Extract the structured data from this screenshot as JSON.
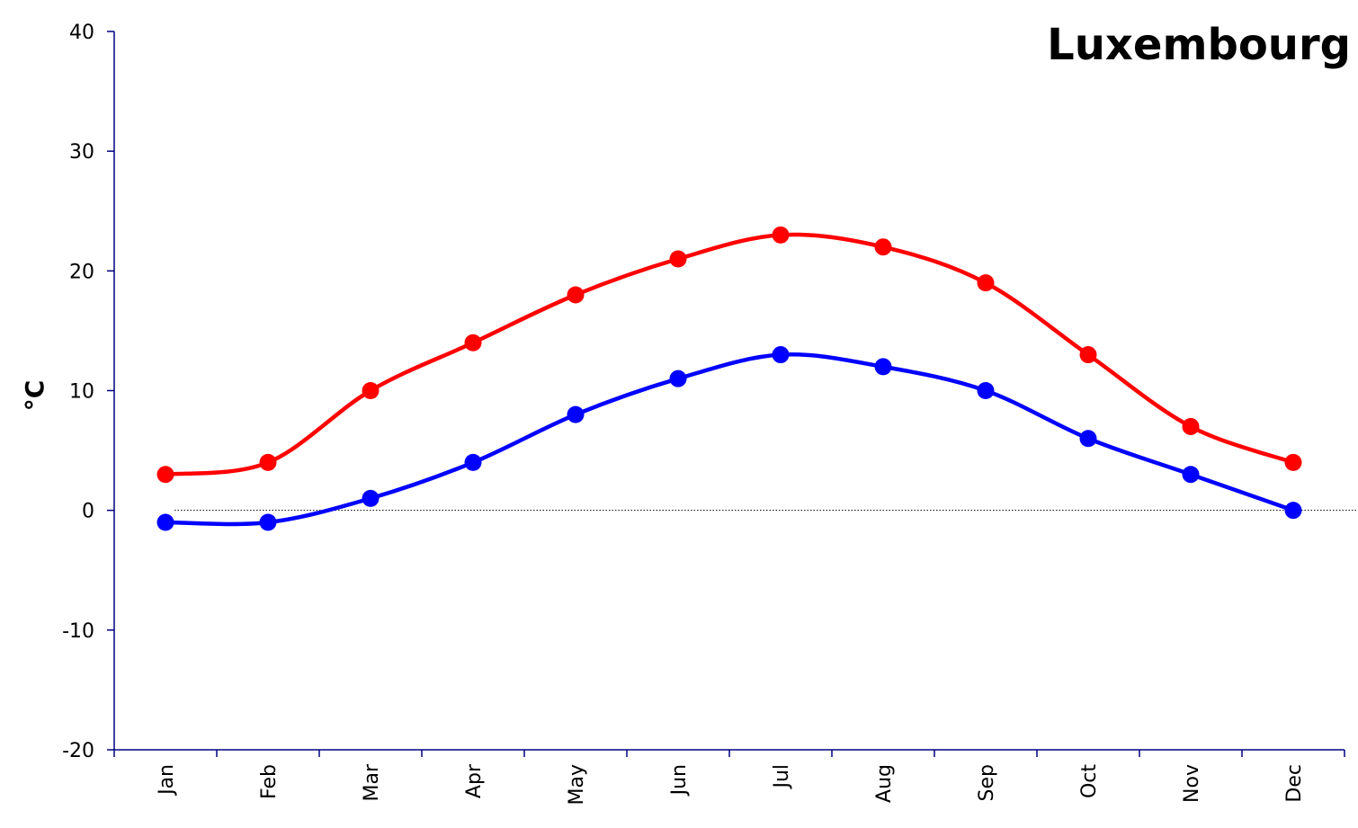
{
  "chart_data": {
    "type": "line",
    "title": "Luxembourg",
    "xlabel": "",
    "ylabel": "°C",
    "categories": [
      "Jan",
      "Feb",
      "Mar",
      "Apr",
      "May",
      "Jun",
      "Jul",
      "Aug",
      "Sep",
      "Oct",
      "Nov",
      "Dec"
    ],
    "yticks": [
      "40",
      "30",
      "20",
      "10",
      "0",
      "-10",
      "-20"
    ],
    "ylim": [
      -20,
      40
    ],
    "grid": false,
    "zero_line": true,
    "series": [
      {
        "color": "#ff0000",
        "values": [
          3,
          4,
          10,
          14,
          18,
          21,
          23,
          22,
          19,
          13,
          7,
          4
        ]
      },
      {
        "color": "#0000ff",
        "values": [
          -1,
          -1,
          1,
          4,
          8,
          11,
          13,
          12,
          10,
          6,
          3,
          0
        ]
      }
    ]
  }
}
